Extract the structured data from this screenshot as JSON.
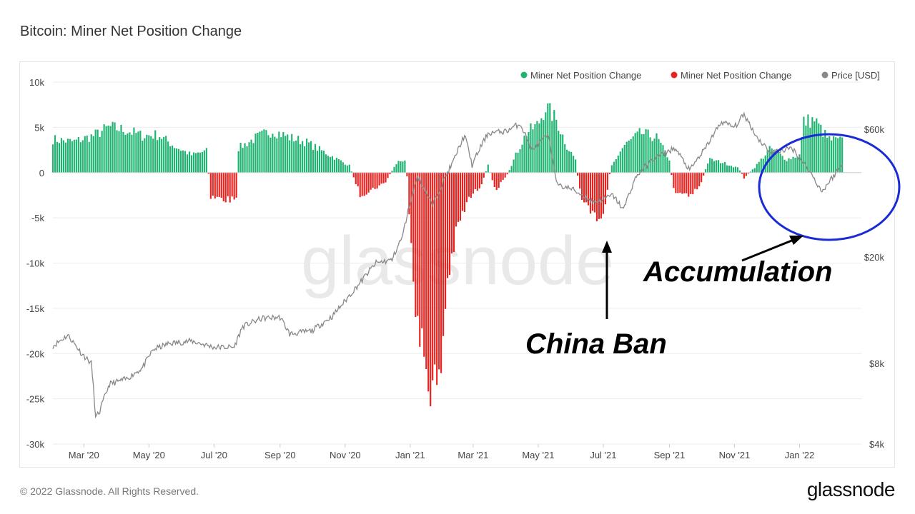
{
  "page": {
    "title": "Bitcoin: Miner Net Position Change",
    "copyright": "© 2022 Glassnode. All Rights Reserved.",
    "logo": "glassnode",
    "watermark": "glassnode"
  },
  "chart_data": {
    "type": "bar",
    "title": "Bitcoin: Miner Net Position Change",
    "legend": {
      "placement": "top-right",
      "entries": [
        {
          "label": "Miner Net Position Change",
          "color": "#1db370"
        },
        {
          "label": "Miner Net Position Change",
          "color": "#e8231f"
        },
        {
          "label": "Price [USD]",
          "color": "#888888"
        }
      ]
    },
    "x_ticks": [
      "Mar '20",
      "May '20",
      "Jul '20",
      "Sep '20",
      "Nov '20",
      "Jan '21",
      "Mar '21",
      "May '21",
      "Jul '21",
      "Sep '21",
      "Nov '21",
      "Jan '22"
    ],
    "x_range": [
      "2020-02-01",
      "2022-02-28"
    ],
    "y_left": {
      "range": [
        -30000,
        10000
      ],
      "ticks": [
        10000,
        5000,
        0,
        -5000,
        -10000,
        -15000,
        -20000,
        -25000,
        -30000
      ],
      "tick_labels": [
        "10k",
        "5k",
        "0",
        "-5k",
        "-10k",
        "-15k",
        "-20k",
        "-25k",
        "-30k"
      ]
    },
    "y_right": {
      "scale": "log",
      "range": [
        4000,
        90000
      ],
      "ticks": [
        60000,
        20000,
        8000,
        4000
      ],
      "tick_labels": [
        "$60k",
        "$20k",
        "$8k",
        "$4k"
      ]
    },
    "grid": true,
    "series": [
      {
        "name": "Miner Net Position Change",
        "color": "#1db370",
        "kind": "bar-positive"
      },
      {
        "name": "Miner Net Position Change",
        "color": "#e8231f",
        "kind": "bar-negative"
      },
      {
        "name": "Price [USD]",
        "color": "#888888",
        "kind": "line"
      }
    ],
    "net_position_keypoints": [
      [
        "2020-02-01",
        3800
      ],
      [
        "2020-02-20",
        3500
      ],
      [
        "2020-03-10",
        4200
      ],
      [
        "2020-03-25",
        5200
      ],
      [
        "2020-04-10",
        4800
      ],
      [
        "2020-04-25",
        4200
      ],
      [
        "2020-05-10",
        4300
      ],
      [
        "2020-05-25",
        3000
      ],
      [
        "2020-06-10",
        2000
      ],
      [
        "2020-06-25",
        2500
      ],
      [
        "2020-06-27",
        -2800
      ],
      [
        "2020-07-10",
        -3000
      ],
      [
        "2020-07-22",
        -3200
      ],
      [
        "2020-07-24",
        2800
      ],
      [
        "2020-08-10",
        4000
      ],
      [
        "2020-08-25",
        4800
      ],
      [
        "2020-09-10",
        4000
      ],
      [
        "2020-09-25",
        3500
      ],
      [
        "2020-10-10",
        2500
      ],
      [
        "2020-10-25",
        1500
      ],
      [
        "2020-11-05",
        800
      ],
      [
        "2020-11-15",
        -2500
      ],
      [
        "2020-11-25",
        -2000
      ],
      [
        "2020-12-08",
        -1200
      ],
      [
        "2020-12-20",
        1200
      ],
      [
        "2020-12-28",
        1500
      ],
      [
        "2021-01-01",
        -6000
      ],
      [
        "2021-01-08",
        -18000
      ],
      [
        "2021-01-18",
        -23000
      ],
      [
        "2021-01-28",
        -25000
      ],
      [
        "2021-02-05",
        -12000
      ],
      [
        "2021-02-15",
        -6000
      ],
      [
        "2021-02-25",
        -3000
      ],
      [
        "2021-03-08",
        -1500
      ],
      [
        "2021-03-15",
        800
      ],
      [
        "2021-03-22",
        -2000
      ],
      [
        "2021-04-01",
        -500
      ],
      [
        "2021-04-10",
        2000
      ],
      [
        "2021-04-20",
        4500
      ],
      [
        "2021-05-01",
        5500
      ],
      [
        "2021-05-08",
        7500
      ],
      [
        "2021-05-18",
        6000
      ],
      [
        "2021-05-28",
        3000
      ],
      [
        "2021-06-05",
        1500
      ],
      [
        "2021-06-10",
        -3000
      ],
      [
        "2021-06-20",
        -5000
      ],
      [
        "2021-07-01",
        -4800
      ],
      [
        "2021-07-08",
        600
      ],
      [
        "2021-07-20",
        3000
      ],
      [
        "2021-08-05",
        4500
      ],
      [
        "2021-08-20",
        4000
      ],
      [
        "2021-09-01",
        1500
      ],
      [
        "2021-09-05",
        -2000
      ],
      [
        "2021-09-20",
        -2500
      ],
      [
        "2021-09-30",
        -1500
      ],
      [
        "2021-10-08",
        1500
      ],
      [
        "2021-10-20",
        1200
      ],
      [
        "2021-11-05",
        500
      ],
      [
        "2021-11-10",
        -600
      ],
      [
        "2021-11-20",
        600
      ],
      [
        "2021-12-05",
        2800
      ],
      [
        "2021-12-20",
        1500
      ],
      [
        "2022-01-01",
        2000
      ],
      [
        "2022-01-05",
        5800
      ],
      [
        "2022-01-15",
        6000
      ],
      [
        "2022-01-28",
        3800
      ],
      [
        "2022-02-10",
        3600
      ]
    ],
    "price_keypoints": [
      [
        "2020-02-01",
        9300
      ],
      [
        "2020-02-15",
        10200
      ],
      [
        "2020-02-28",
        8700
      ],
      [
        "2020-03-08",
        8000
      ],
      [
        "2020-03-12",
        5000
      ],
      [
        "2020-03-16",
        5300
      ],
      [
        "2020-03-25",
        6700
      ],
      [
        "2020-04-10",
        7000
      ],
      [
        "2020-04-25",
        7700
      ],
      [
        "2020-05-05",
        9000
      ],
      [
        "2020-05-20",
        9500
      ],
      [
        "2020-06-10",
        9700
      ],
      [
        "2020-07-01",
        9200
      ],
      [
        "2020-07-20",
        9200
      ],
      [
        "2020-07-28",
        11000
      ],
      [
        "2020-08-15",
        11800
      ],
      [
        "2020-09-01",
        11900
      ],
      [
        "2020-09-10",
        10300
      ],
      [
        "2020-10-01",
        10600
      ],
      [
        "2020-10-20",
        12000
      ],
      [
        "2020-11-01",
        13700
      ],
      [
        "2020-11-15",
        16000
      ],
      [
        "2020-11-30",
        19000
      ],
      [
        "2020-12-15",
        19500
      ],
      [
        "2020-12-25",
        24000
      ],
      [
        "2021-01-08",
        40000
      ],
      [
        "2021-01-22",
        31000
      ],
      [
        "2021-02-10",
        45000
      ],
      [
        "2021-02-21",
        57000
      ],
      [
        "2021-02-28",
        44000
      ],
      [
        "2021-03-15",
        58000
      ],
      [
        "2021-04-01",
        59000
      ],
      [
        "2021-04-14",
        63000
      ],
      [
        "2021-04-25",
        50000
      ],
      [
        "2021-05-10",
        57000
      ],
      [
        "2021-05-19",
        37000
      ],
      [
        "2021-06-01",
        36000
      ],
      [
        "2021-06-22",
        32000
      ],
      [
        "2021-07-10",
        34000
      ],
      [
        "2021-07-20",
        30000
      ],
      [
        "2021-08-01",
        40000
      ],
      [
        "2021-08-15",
        46000
      ],
      [
        "2021-09-06",
        51000
      ],
      [
        "2021-09-20",
        42000
      ],
      [
        "2021-10-05",
        51000
      ],
      [
        "2021-10-20",
        64000
      ],
      [
        "2021-11-01",
        61000
      ],
      [
        "2021-11-10",
        68000
      ],
      [
        "2021-11-22",
        56000
      ],
      [
        "2021-12-05",
        49000
      ],
      [
        "2021-12-25",
        51000
      ],
      [
        "2022-01-10",
        42000
      ],
      [
        "2022-01-22",
        35000
      ],
      [
        "2022-02-10",
        44000
      ]
    ],
    "annotations": [
      {
        "text": "China Ban",
        "points_to": "2021-06 negative bars"
      },
      {
        "text": "Accumulation",
        "points_to": "late 2021 – early 2022 positive bars (circled)"
      }
    ]
  }
}
